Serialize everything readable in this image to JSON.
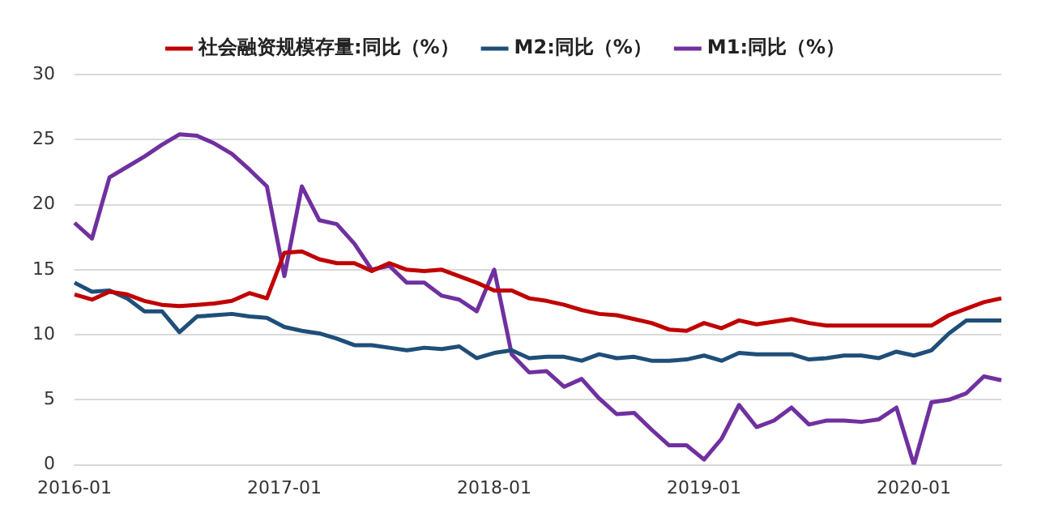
{
  "chart_data": {
    "type": "line",
    "categories": [
      "2016-01",
      null,
      null,
      null,
      null,
      null,
      null,
      null,
      null,
      null,
      null,
      null,
      "2017-01",
      null,
      null,
      null,
      null,
      null,
      null,
      null,
      null,
      null,
      null,
      null,
      "2018-01",
      null,
      null,
      null,
      null,
      null,
      null,
      null,
      null,
      null,
      null,
      null,
      "2019-01",
      null,
      null,
      null,
      null,
      null,
      null,
      null,
      null,
      null,
      null,
      null,
      "2020-01",
      null,
      null,
      null,
      null,
      null
    ],
    "series": [
      {
        "name": "社会融资规模存量:同比（%）",
        "color": "#c00000",
        "values": [
          13.1,
          12.7,
          13.3,
          13.1,
          12.6,
          12.3,
          12.2,
          12.3,
          12.4,
          12.6,
          13.2,
          12.8,
          16.3,
          16.4,
          15.8,
          15.5,
          15.5,
          14.9,
          15.5,
          15.0,
          14.9,
          15.0,
          14.5,
          14.0,
          13.4,
          13.4,
          12.8,
          12.6,
          12.3,
          11.9,
          11.6,
          11.5,
          11.2,
          10.9,
          10.4,
          10.3,
          10.9,
          10.5,
          11.1,
          10.8,
          11.0,
          11.2,
          10.9,
          10.7,
          10.7,
          10.7,
          10.7,
          10.7,
          10.7,
          10.7,
          11.5,
          12.0,
          12.5,
          12.8
        ]
      },
      {
        "name": "M2:同比（%）",
        "color": "#1f4e79",
        "values": [
          14.0,
          13.3,
          13.4,
          12.8,
          11.8,
          11.8,
          10.2,
          11.4,
          11.5,
          11.6,
          11.4,
          11.3,
          10.6,
          10.3,
          10.1,
          9.7,
          9.2,
          9.2,
          9.0,
          8.8,
          9.0,
          8.9,
          9.1,
          8.2,
          8.6,
          8.8,
          8.2,
          8.3,
          8.3,
          8.0,
          8.5,
          8.2,
          8.3,
          8.0,
          8.0,
          8.1,
          8.4,
          8.0,
          8.6,
          8.5,
          8.5,
          8.5,
          8.1,
          8.2,
          8.4,
          8.4,
          8.2,
          8.7,
          8.4,
          8.8,
          10.1,
          11.1,
          11.1,
          11.1
        ]
      },
      {
        "name": "M1:同比（%）",
        "color": "#7030a0",
        "values": [
          18.6,
          17.4,
          22.1,
          22.9,
          23.7,
          24.6,
          25.4,
          25.3,
          24.7,
          23.9,
          22.7,
          21.4,
          14.5,
          21.4,
          18.8,
          18.5,
          17.0,
          15.0,
          15.3,
          14.0,
          14.0,
          13.0,
          12.7,
          11.8,
          15.0,
          8.5,
          7.1,
          7.2,
          6.0,
          6.6,
          5.1,
          3.9,
          4.0,
          2.7,
          1.5,
          1.5,
          0.4,
          2.0,
          4.6,
          2.9,
          3.4,
          4.4,
          3.1,
          3.4,
          3.4,
          3.3,
          3.5,
          4.4,
          0.0,
          4.8,
          5.0,
          5.5,
          6.8,
          6.5
        ]
      }
    ],
    "ylim": [
      0,
      30
    ],
    "yticks": [
      0,
      5,
      10,
      15,
      20,
      25,
      30
    ],
    "grid": "y",
    "legend": "top",
    "marker": "none",
    "line_style": "solid"
  }
}
